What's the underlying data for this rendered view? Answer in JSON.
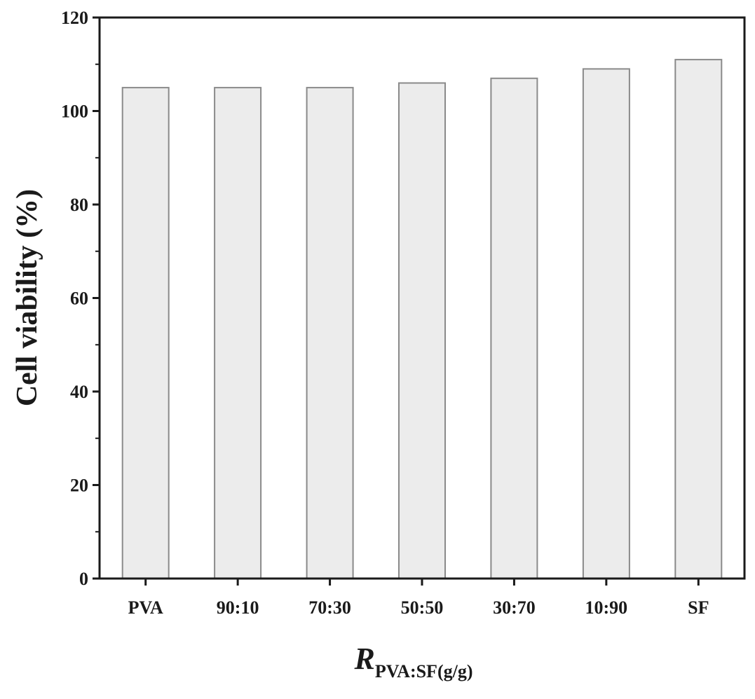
{
  "chart_data": {
    "type": "bar",
    "categories": [
      "PVA",
      "90:10",
      "70:30",
      "50:50",
      "30:70",
      "10:90",
      "SF"
    ],
    "values": [
      105,
      105,
      105,
      106,
      107,
      109,
      111
    ],
    "ylabel": "Cell viability (%)",
    "xlabel_main": "R",
    "xlabel_sub": "PVA:SF(g/g)",
    "ylim": [
      0,
      120
    ],
    "yticks": [
      0,
      20,
      40,
      60,
      80,
      100,
      120
    ],
    "grid": false,
    "legend": "none",
    "colors": {
      "bar_fill": "#ececec",
      "bar_stroke": "#8a8a8a",
      "axis": "#1a1a1a"
    }
  }
}
